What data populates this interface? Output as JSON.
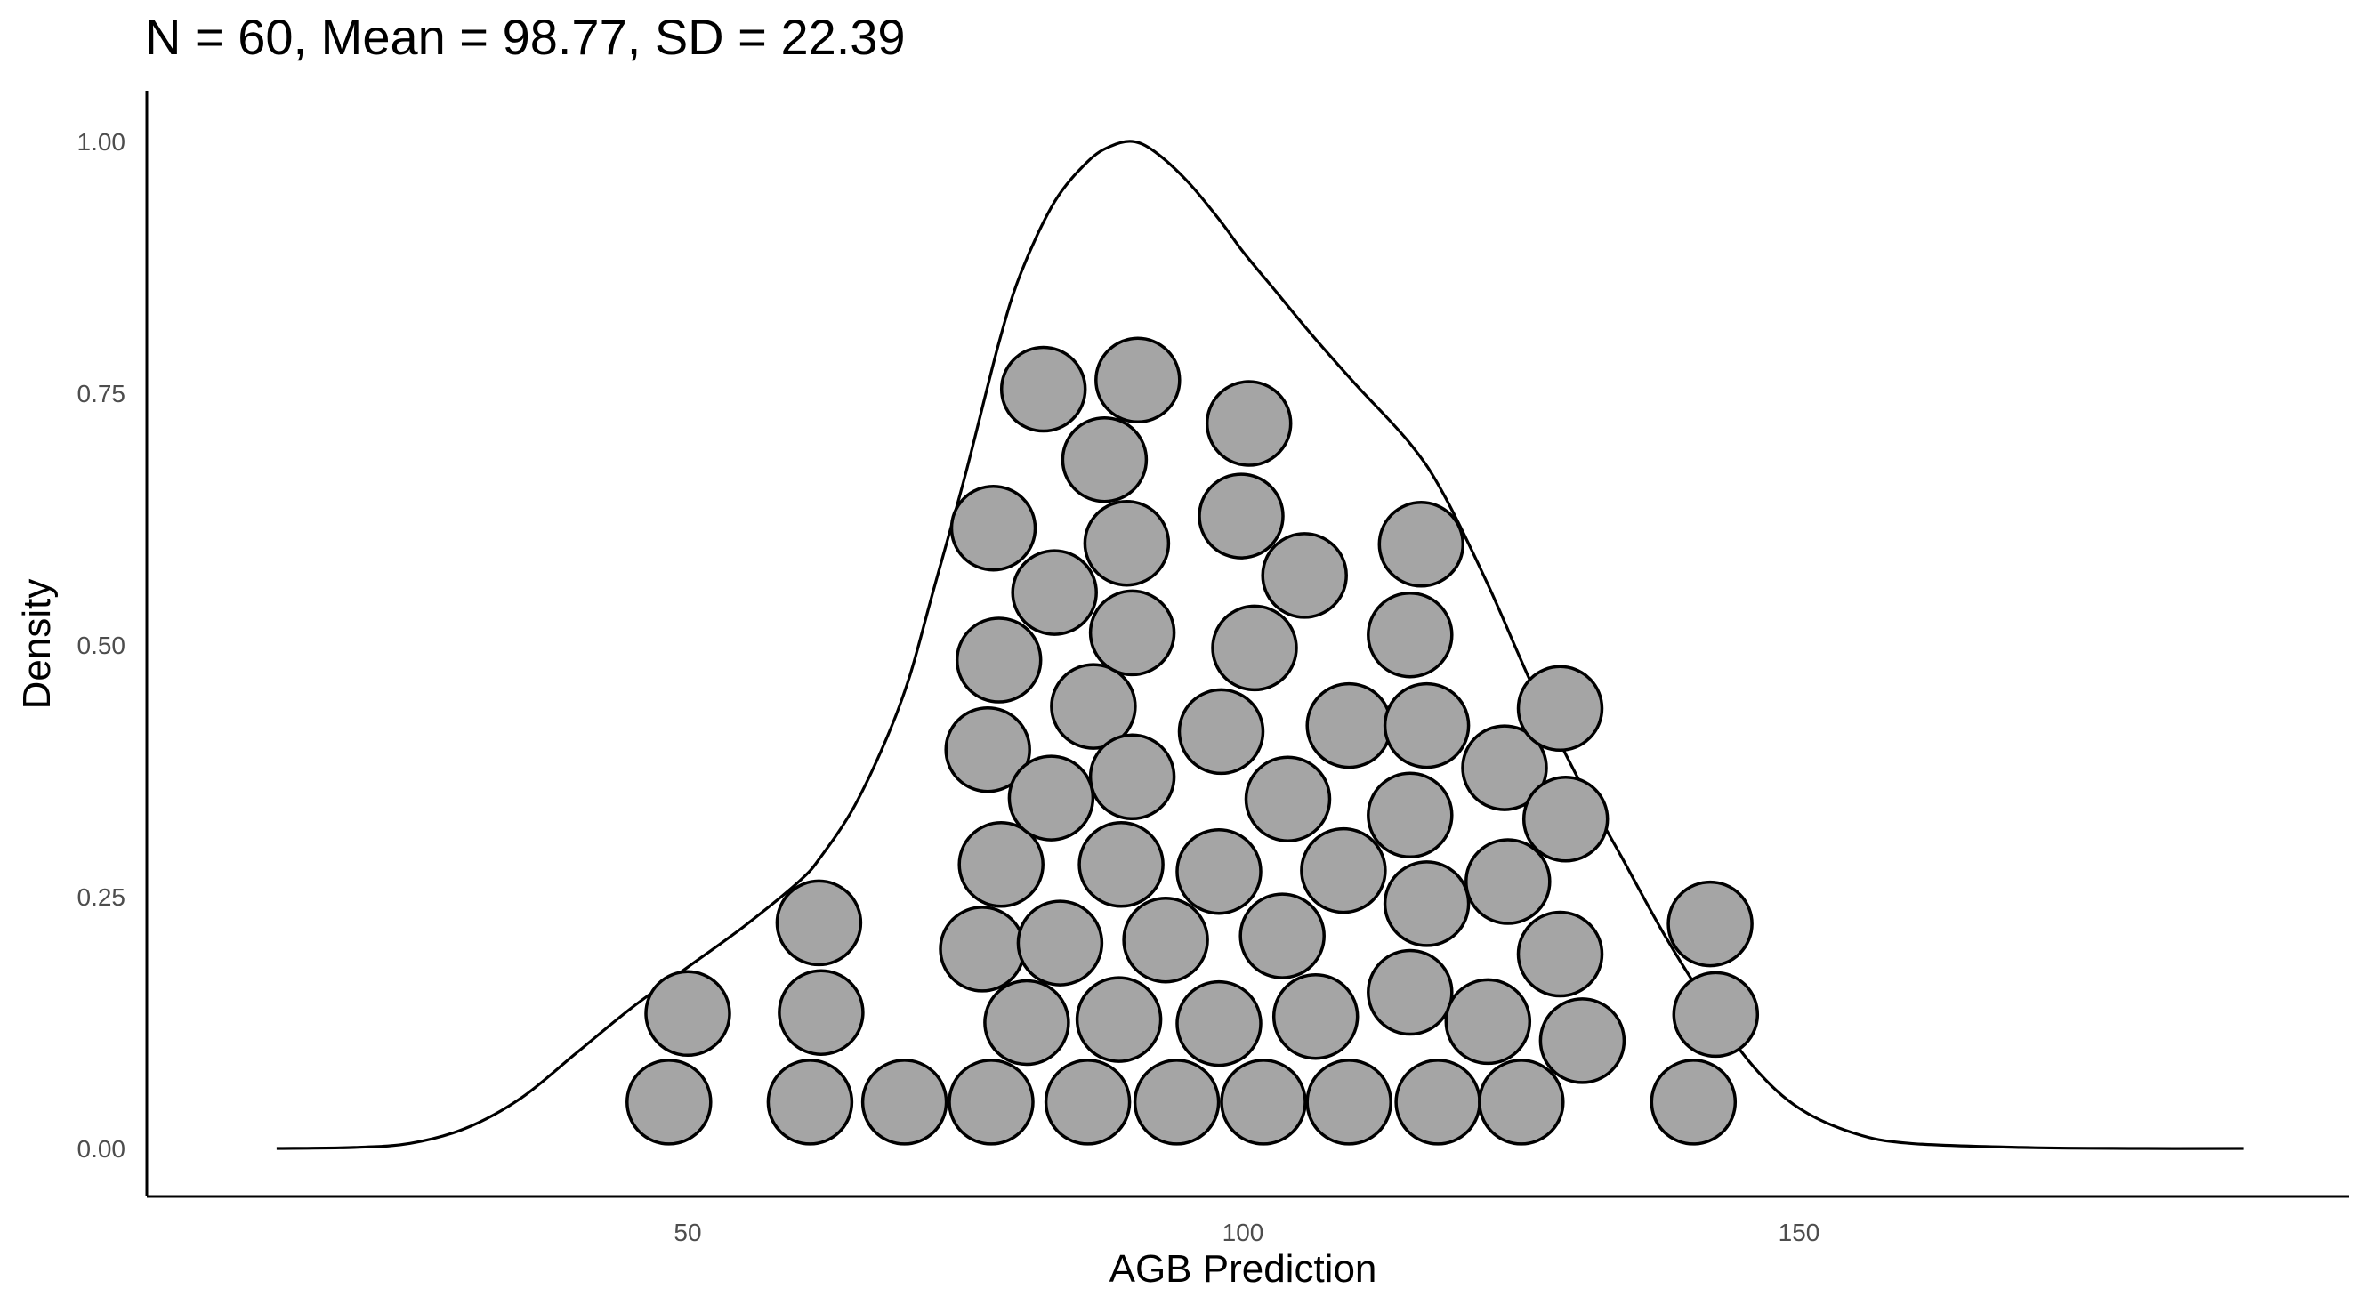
{
  "chart_data": {
    "type": "scatter",
    "title": "N = 60, Mean = 98.77, SD = 22.39",
    "xlabel": "AGB Prediction",
    "ylabel": "Density",
    "xlim": [
      13,
      190
    ],
    "ylim": [
      0,
      1.0
    ],
    "x_ticks": [
      50,
      100,
      150
    ],
    "y_ticks": [
      0.0,
      0.25,
      0.5,
      0.75,
      1.0
    ],
    "x_tick_labels": [
      "50",
      "100",
      "150"
    ],
    "y_tick_labels": [
      "0.00",
      "0.25",
      "0.50",
      "0.75",
      "1.00"
    ],
    "grid": false,
    "dot_fill": "#a5a5a5",
    "dot_stroke": "#000000",
    "density_curve": {
      "x": [
        13,
        20,
        25,
        30,
        35,
        40,
        45,
        50,
        55,
        60,
        62,
        65,
        68,
        70,
        72,
        75,
        78,
        80,
        83,
        86,
        88,
        90,
        92,
        95,
        98,
        100,
        103,
        106,
        110,
        115,
        118,
        122,
        126,
        130,
        134,
        138,
        142,
        146,
        150,
        155,
        160,
        170,
        180,
        190
      ],
      "y": [
        0.0,
        0.001,
        0.005,
        0.02,
        0.05,
        0.095,
        0.14,
        0.18,
        0.22,
        0.265,
        0.29,
        0.34,
        0.41,
        0.47,
        0.55,
        0.67,
        0.8,
        0.87,
        0.94,
        0.98,
        0.995,
        1.0,
        0.99,
        0.96,
        0.92,
        0.89,
        0.85,
        0.81,
        0.76,
        0.7,
        0.65,
        0.56,
        0.46,
        0.37,
        0.29,
        0.21,
        0.14,
        0.08,
        0.04,
        0.015,
        0.005,
        0.001,
        0.0,
        0.0
      ]
    },
    "points": [
      {
        "x": 48.3,
        "y": 0.046
      },
      {
        "x": 50.0,
        "y": 0.134
      },
      {
        "x": 61.0,
        "y": 0.046
      },
      {
        "x": 62.0,
        "y": 0.135
      },
      {
        "x": 61.8,
        "y": 0.224
      },
      {
        "x": 69.5,
        "y": 0.046
      },
      {
        "x": 77.3,
        "y": 0.046
      },
      {
        "x": 76.5,
        "y": 0.198
      },
      {
        "x": 78.2,
        "y": 0.282
      },
      {
        "x": 77.0,
        "y": 0.396
      },
      {
        "x": 78.0,
        "y": 0.485
      },
      {
        "x": 77.5,
        "y": 0.616
      },
      {
        "x": 80.5,
        "y": 0.125
      },
      {
        "x": 83.5,
        "y": 0.204
      },
      {
        "x": 82.7,
        "y": 0.348
      },
      {
        "x": 86.0,
        "y": 0.046
      },
      {
        "x": 86.5,
        "y": 0.439
      },
      {
        "x": 83.0,
        "y": 0.552
      },
      {
        "x": 82.0,
        "y": 0.754
      },
      {
        "x": 87.5,
        "y": 0.684
      },
      {
        "x": 88.8,
        "y": 0.128
      },
      {
        "x": 89.0,
        "y": 0.282
      },
      {
        "x": 90.0,
        "y": 0.369
      },
      {
        "x": 90.0,
        "y": 0.512
      },
      {
        "x": 89.5,
        "y": 0.601
      },
      {
        "x": 90.5,
        "y": 0.763
      },
      {
        "x": 94.0,
        "y": 0.046
      },
      {
        "x": 93.0,
        "y": 0.207
      },
      {
        "x": 97.8,
        "y": 0.124
      },
      {
        "x": 97.8,
        "y": 0.275
      },
      {
        "x": 98.0,
        "y": 0.414
      },
      {
        "x": 99.8,
        "y": 0.628
      },
      {
        "x": 100.5,
        "y": 0.72
      },
      {
        "x": 101.8,
        "y": 0.046
      },
      {
        "x": 101.0,
        "y": 0.497
      },
      {
        "x": 103.5,
        "y": 0.211
      },
      {
        "x": 104.0,
        "y": 0.347
      },
      {
        "x": 105.5,
        "y": 0.569
      },
      {
        "x": 106.5,
        "y": 0.131
      },
      {
        "x": 109.5,
        "y": 0.046
      },
      {
        "x": 109.0,
        "y": 0.276
      },
      {
        "x": 109.5,
        "y": 0.42
      },
      {
        "x": 115.0,
        "y": 0.155
      },
      {
        "x": 115.0,
        "y": 0.331
      },
      {
        "x": 115.0,
        "y": 0.51
      },
      {
        "x": 116.0,
        "y": 0.6
      },
      {
        "x": 117.5,
        "y": 0.046
      },
      {
        "x": 116.5,
        "y": 0.243
      },
      {
        "x": 116.5,
        "y": 0.42
      },
      {
        "x": 122.0,
        "y": 0.126
      },
      {
        "x": 123.8,
        "y": 0.265
      },
      {
        "x": 123.5,
        "y": 0.378
      },
      {
        "x": 125.0,
        "y": 0.046
      },
      {
        "x": 128.5,
        "y": 0.193
      },
      {
        "x": 128.5,
        "y": 0.437
      },
      {
        "x": 129.0,
        "y": 0.327
      },
      {
        "x": 130.5,
        "y": 0.107
      },
      {
        "x": 140.5,
        "y": 0.046
      },
      {
        "x": 142.5,
        "y": 0.133
      },
      {
        "x": 142.0,
        "y": 0.223
      }
    ]
  }
}
